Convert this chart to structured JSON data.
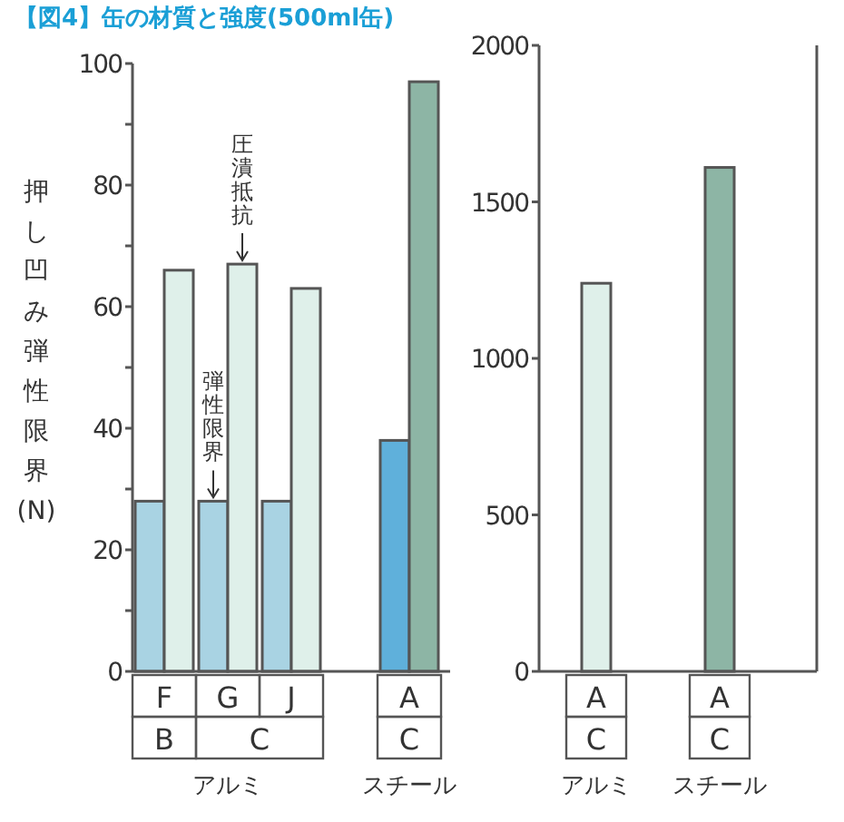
{
  "chart_data": [
    {
      "type": "bar",
      "title": "【図4】缶の材質と強度(500ml缶)",
      "ylabel": "押し凹み弾性限界(N)",
      "categories": [
        "F",
        "G",
        "J",
        "A"
      ],
      "series": [
        {
          "name": "弾性限界",
          "values": [
            28,
            28,
            28,
            38
          ],
          "colors": [
            "#a9d3e3",
            "#a9d3e3",
            "#a9d3e3",
            "#5fb0db"
          ]
        },
        {
          "name": "圧潰抵抗",
          "values": [
            66,
            67,
            63,
            97
          ],
          "colors": [
            "#dff0ea",
            "#dff0ea",
            "#dff0ea",
            "#8db5a5"
          ]
        }
      ],
      "ylim": [
        0,
        100
      ],
      "yticks": [
        0,
        {
          "value": 10,
          "label": null
        },
        20,
        {
          "value": 30,
          "label": null
        },
        40,
        {
          "value": 50,
          "label": null
        },
        60,
        {
          "value": 70,
          "label": null
        },
        80,
        {
          "value": 90,
          "label": null
        },
        100
      ],
      "annotations": [
        "B",
        "C",
        "C",
        "アルミ",
        "スチール"
      ]
    },
    {
      "type": "bar",
      "categories": [
        "A",
        "A"
      ],
      "values": [
        1240,
        1610
      ],
      "colors": [
        "#dff0ea",
        "#8db5a5"
      ],
      "ylim": [
        0,
        2000
      ],
      "yticks": [
        0,
        500,
        1000,
        1500,
        2000
      ],
      "annotations": [
        "C",
        "C",
        "アルミ",
        "スチール"
      ]
    }
  ]
}
